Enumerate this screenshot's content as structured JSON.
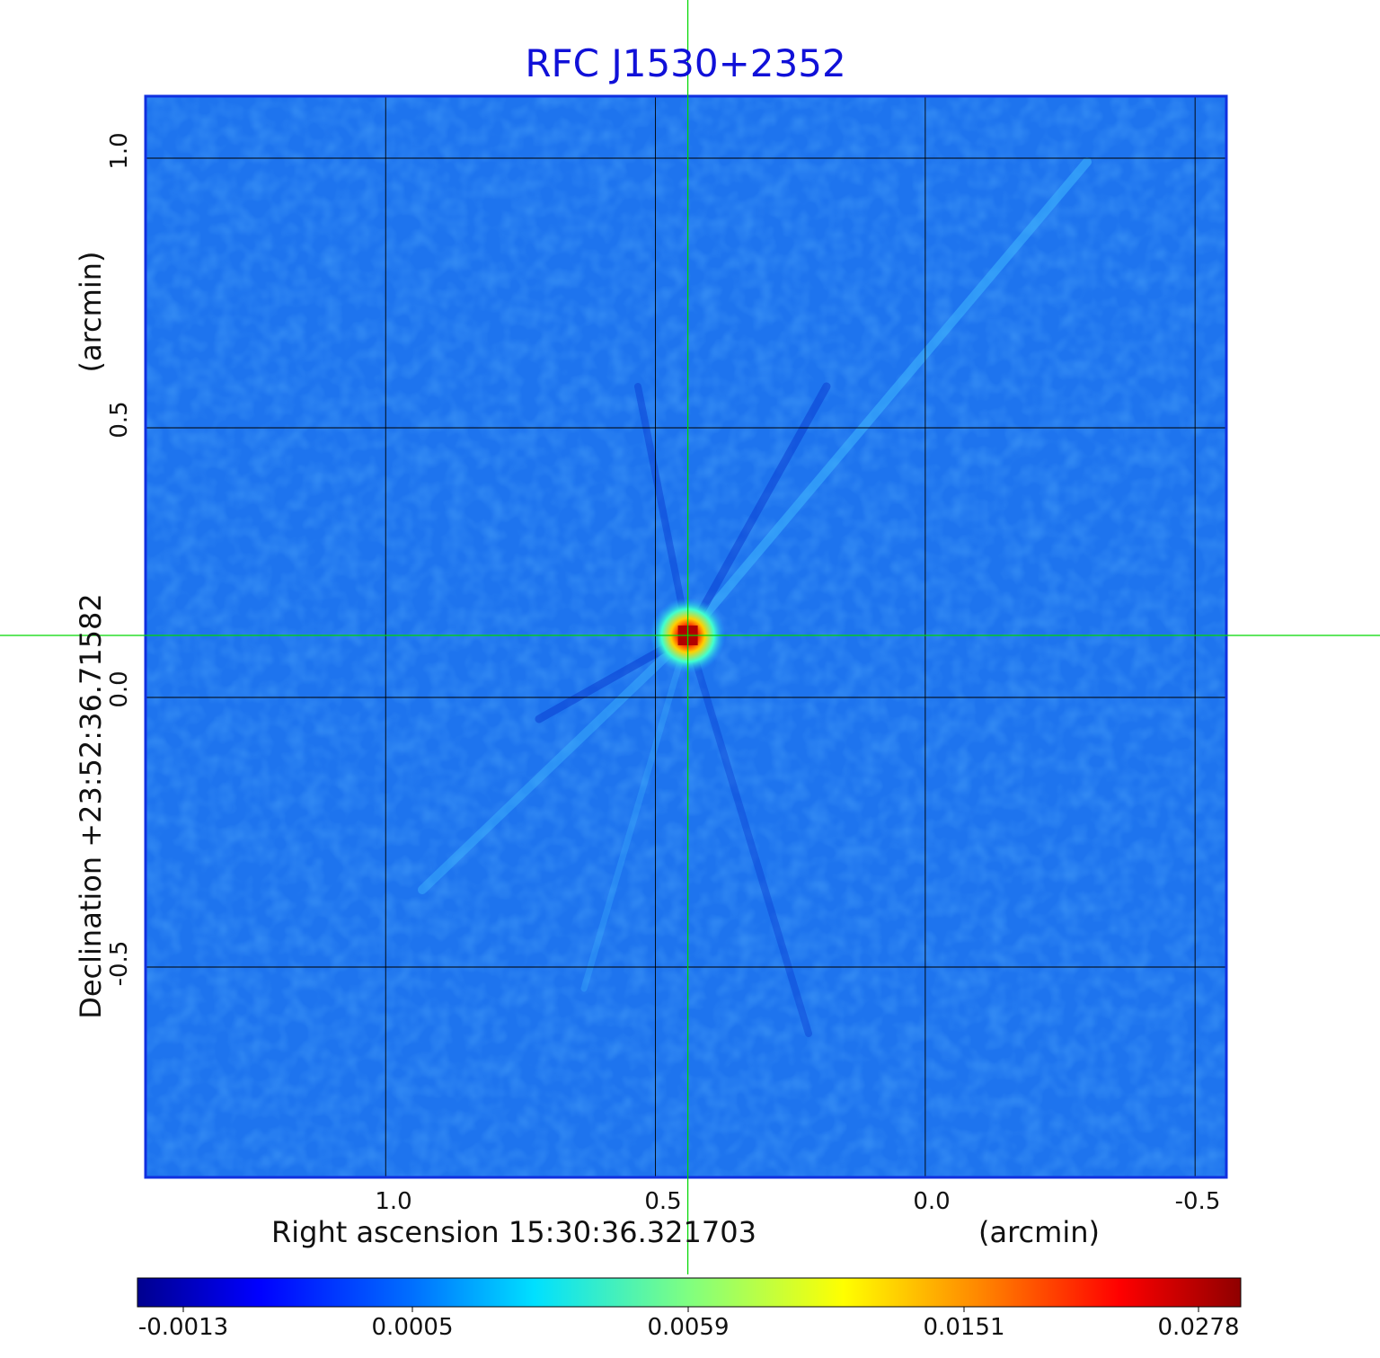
{
  "title": "RFC J1530+2352",
  "x_axis": {
    "label": "Right ascension  15:30:36.321703",
    "unit": "(arcmin)",
    "ticks": [
      "1.0",
      "0.5",
      "0.0",
      "-0.5"
    ],
    "tick_values": [
      1.0,
      0.5,
      0.0,
      -0.5
    ],
    "range": [
      1.445,
      -0.558
    ]
  },
  "y_axis": {
    "label": "Declination  +23:52:36.71582",
    "unit": "(arcmin)",
    "ticks": [
      "1.0",
      "0.5",
      "0.0",
      "-0.5"
    ],
    "tick_values": [
      1.0,
      0.5,
      0.0,
      -0.5
    ],
    "range": [
      -0.89,
      1.115
    ]
  },
  "crosshair": {
    "ra_arcmin": 0.44,
    "dec_arcmin": 0.115,
    "color": "#00d800"
  },
  "source_peak": {
    "ra_arcmin": 0.44,
    "dec_arcmin": 0.115,
    "value": 0.0278
  },
  "colorbar": {
    "colormap": "jet",
    "tick_labels": [
      "-0.0013",
      "0.0005",
      "0.0059",
      "0.0151",
      "0.0278"
    ],
    "tick_values": [
      -0.0013,
      0.0005,
      0.0059,
      0.0151,
      0.0278
    ]
  },
  "grid": true,
  "colors": {
    "title": "#1010d8",
    "frame": "#1030e0",
    "grid": "#000000",
    "background_field": "#1e78f0"
  }
}
